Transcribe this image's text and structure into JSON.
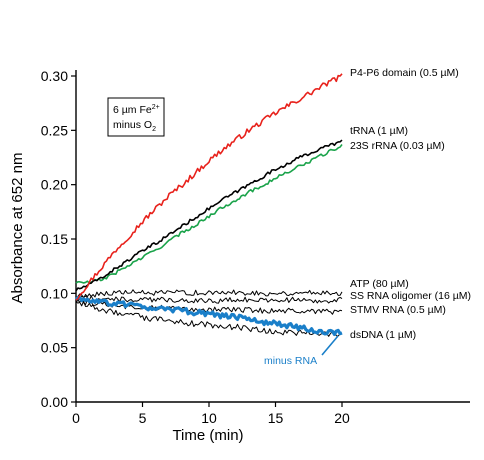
{
  "chart_data": {
    "type": "line",
    "xlabel": "Time (min)",
    "ylabel": "Absorbance at 652 nm",
    "xlim": [
      0,
      20
    ],
    "ylim": [
      0.0,
      0.3
    ],
    "x_ticks": [
      "0",
      "5",
      "10",
      "15",
      "20"
    ],
    "y_ticks": [
      "0.00",
      "0.05",
      "0.10",
      "0.15",
      "0.20",
      "0.25",
      "0.30"
    ],
    "grid": false,
    "annotation_box": {
      "line1": "6 µm Fe",
      "line1_sup": "2+",
      "line2": "minus O",
      "line2_sub": "2"
    },
    "series": [
      {
        "name": "P4-P6 domain (0.5 µM)",
        "color": "#e8221c",
        "x": [
          0,
          1,
          2,
          3,
          4,
          5,
          6,
          7,
          8,
          9,
          10,
          11,
          12,
          13,
          14,
          15,
          16,
          17,
          18,
          19,
          20
        ],
        "values": [
          0.095,
          0.11,
          0.125,
          0.14,
          0.153,
          0.166,
          0.178,
          0.19,
          0.2,
          0.211,
          0.222,
          0.232,
          0.241,
          0.25,
          0.258,
          0.266,
          0.273,
          0.28,
          0.287,
          0.294,
          0.3
        ]
      },
      {
        "name": "tRNA  (1 µM)",
        "color": "#000000",
        "x": [
          0,
          1,
          2,
          3,
          4,
          5,
          6,
          7,
          8,
          9,
          10,
          11,
          12,
          13,
          14,
          15,
          16,
          17,
          18,
          19,
          20
        ],
        "values": [
          0.103,
          0.108,
          0.115,
          0.123,
          0.131,
          0.139,
          0.146,
          0.154,
          0.162,
          0.17,
          0.178,
          0.186,
          0.193,
          0.2,
          0.207,
          0.214,
          0.22,
          0.226,
          0.231,
          0.236,
          0.24
        ]
      },
      {
        "name": "23S rRNA (0.03 µM)",
        "color": "#1aa34a",
        "x": [
          0,
          1,
          2,
          3,
          4,
          5,
          6,
          7,
          8,
          9,
          10,
          11,
          12,
          13,
          14,
          15,
          16,
          17,
          18,
          19,
          20
        ],
        "values": [
          0.11,
          0.11,
          0.113,
          0.119,
          0.126,
          0.133,
          0.14,
          0.148,
          0.156,
          0.163,
          0.171,
          0.179,
          0.186,
          0.193,
          0.199,
          0.206,
          0.212,
          0.218,
          0.224,
          0.23,
          0.236
        ]
      },
      {
        "name": "ATP  (80 µM)",
        "color": "#000000",
        "x": [
          0,
          2,
          4,
          6,
          8,
          10,
          12,
          14,
          16,
          18,
          20
        ],
        "values": [
          0.097,
          0.1,
          0.101,
          0.1,
          0.101,
          0.1,
          0.101,
          0.1,
          0.1,
          0.101,
          0.1
        ]
      },
      {
        "name": "SS RNA oligomer (16 µM)",
        "color": "#000000",
        "x": [
          0,
          2,
          4,
          6,
          8,
          10,
          12,
          14,
          16,
          18,
          20
        ],
        "values": [
          0.096,
          0.095,
          0.094,
          0.094,
          0.094,
          0.093,
          0.094,
          0.094,
          0.094,
          0.093,
          0.094
        ]
      },
      {
        "name": "STMV RNA (0.5 µM)",
        "color": "#000000",
        "x": [
          0,
          2,
          4,
          6,
          8,
          10,
          12,
          14,
          16,
          18,
          20
        ],
        "values": [
          0.093,
          0.09,
          0.088,
          0.087,
          0.086,
          0.085,
          0.085,
          0.084,
          0.084,
          0.083,
          0.083
        ]
      },
      {
        "name": "dsDNA  (1 µM)",
        "color": "#000000",
        "x": [
          0,
          2,
          4,
          6,
          8,
          10,
          12,
          14,
          16,
          18,
          20
        ],
        "values": [
          0.092,
          0.085,
          0.08,
          0.076,
          0.073,
          0.071,
          0.069,
          0.066,
          0.064,
          0.063,
          0.062
        ]
      },
      {
        "name": "minus RNA",
        "color": "#1a7fc9",
        "x": [
          0,
          2,
          4,
          6,
          8,
          10,
          12,
          14,
          16,
          18,
          20
        ],
        "values": [
          0.095,
          0.092,
          0.089,
          0.086,
          0.084,
          0.081,
          0.078,
          0.074,
          0.07,
          0.066,
          0.063
        ]
      }
    ]
  }
}
